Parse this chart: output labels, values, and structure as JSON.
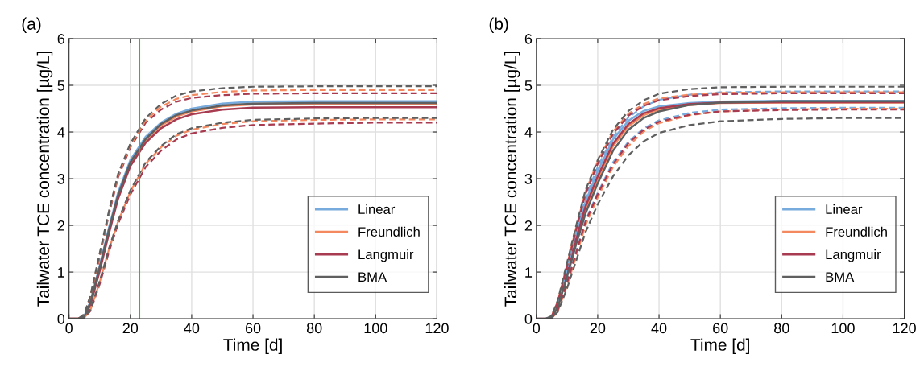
{
  "chart_data": [
    {
      "type": "line",
      "annotations": [
        "(a)"
      ],
      "xlabel": "Time [d]",
      "ylabel": "Tailwater TCE concentration [µg/L]",
      "x": [
        0,
        3,
        5,
        7,
        10,
        13,
        16,
        20,
        25,
        30,
        35,
        40,
        50,
        60,
        80,
        100,
        120
      ],
      "xlim": [
        0,
        120
      ],
      "xticks": [
        0,
        20,
        40,
        60,
        80,
        100,
        120
      ],
      "ylim": [
        0,
        6
      ],
      "yticks": [
        0,
        1,
        2,
        3,
        4,
        5,
        6
      ],
      "grid": true,
      "legend": "bottom right",
      "marker": "none",
      "ref_lines": [
        {
          "axis": "x",
          "value": 23,
          "color": "#00dd00",
          "line_style": "solid"
        }
      ],
      "series": [
        {
          "name": "Linear",
          "color": "#77aadd",
          "line_style": "solid",
          "values": [
            null,
            null,
            0.06,
            0.37,
            1.13,
            1.94,
            2.7,
            3.4,
            3.9,
            4.2,
            4.39,
            4.5,
            4.61,
            4.65,
            4.66,
            4.66,
            4.66
          ]
        },
        {
          "name": "Freundlich",
          "color": "#f4895f",
          "line_style": "solid",
          "values": [
            0,
            0,
            0.04,
            0.33,
            1.07,
            1.87,
            2.62,
            3.32,
            3.82,
            4.14,
            4.33,
            4.44,
            4.55,
            4.59,
            4.6,
            4.6,
            4.6
          ]
        },
        {
          "name": "Langmuir",
          "color": "#a83b50",
          "line_style": "solid",
          "values": [
            0,
            0,
            0.03,
            0.3,
            1.02,
            1.82,
            2.57,
            3.27,
            3.77,
            4.08,
            4.27,
            4.38,
            4.48,
            4.52,
            4.53,
            4.53,
            4.53
          ]
        },
        {
          "color": "#a83b50",
          "line_style": "dashed",
          "values": [
            0,
            0,
            0.08,
            0.45,
            1.33,
            2.23,
            3.03,
            3.67,
            4.2,
            4.48,
            4.65,
            4.73,
            4.79,
            4.82,
            4.83,
            4.83,
            4.83
          ]
        },
        {
          "color": "#a83b50",
          "line_style": "dashed",
          "values": [
            0,
            0,
            0.01,
            0.17,
            0.74,
            1.43,
            2.03,
            2.66,
            3.25,
            3.6,
            3.84,
            3.97,
            4.09,
            4.15,
            4.18,
            4.2,
            4.2
          ]
        },
        {
          "color": "#f4895f",
          "line_style": "dashed",
          "values": [
            0,
            0,
            0.09,
            0.48,
            1.37,
            2.27,
            3.07,
            3.71,
            4.25,
            4.54,
            4.71,
            4.79,
            4.86,
            4.89,
            4.9,
            4.9,
            4.9
          ]
        },
        {
          "color": "#f4895f",
          "line_style": "dashed",
          "values": [
            null,
            null,
            0.02,
            0.19,
            0.78,
            1.48,
            2.08,
            2.72,
            3.32,
            3.67,
            3.92,
            4.05,
            4.17,
            4.23,
            4.26,
            4.27,
            4.27
          ]
        },
        {
          "color": "#5f5f5f",
          "line_style": "dashed",
          "values": [
            0,
            0,
            0.1,
            0.5,
            1.4,
            2.3,
            3.1,
            3.75,
            4.3,
            4.6,
            4.78,
            4.87,
            4.94,
            4.97,
            4.98,
            4.98,
            4.98
          ]
        },
        {
          "color": "#5f5f5f",
          "line_style": "dashed",
          "values": [
            0,
            0,
            0.02,
            0.2,
            0.8,
            1.5,
            2.1,
            2.75,
            3.35,
            3.7,
            3.95,
            4.08,
            4.2,
            4.26,
            4.29,
            4.3,
            4.3
          ]
        },
        {
          "name": "BMA",
          "color": "#5f5f5f",
          "line_style": "solid",
          "values": [
            0,
            0,
            0.05,
            0.35,
            1.1,
            1.9,
            2.65,
            3.35,
            3.85,
            4.17,
            4.36,
            4.46,
            4.57,
            4.61,
            4.62,
            4.62,
            4.62
          ]
        }
      ]
    },
    {
      "type": "line",
      "annotations": [
        "(b)"
      ],
      "xlabel": "Time [d]",
      "ylabel": "Tailwater TCE concentration [µg/L]",
      "x": [
        0,
        3,
        5,
        7,
        10,
        13,
        16,
        20,
        25,
        30,
        35,
        40,
        50,
        60,
        80,
        100,
        120
      ],
      "xlim": [
        0,
        120
      ],
      "xticks": [
        0,
        20,
        40,
        60,
        80,
        100,
        120
      ],
      "ylim": [
        0,
        6
      ],
      "yticks": [
        0,
        1,
        2,
        3,
        4,
        5,
        6
      ],
      "grid": true,
      "legend": "bottom right",
      "marker": "none",
      "series": [
        {
          "name": "Linear",
          "color": "#77aadd",
          "line_style": "solid",
          "values": [
            null,
            null,
            0.04,
            0.31,
            1.04,
            1.8,
            2.5,
            3.16,
            3.84,
            4.24,
            4.45,
            4.55,
            4.62,
            4.65,
            4.67,
            4.67,
            4.67
          ]
        },
        {
          "name": "Freundlich",
          "color": "#f4895f",
          "line_style": "solid",
          "values": [
            null,
            null,
            0.02,
            0.26,
            0.95,
            1.68,
            2.35,
            3.0,
            3.7,
            4.12,
            4.36,
            4.48,
            4.58,
            4.62,
            4.63,
            4.63,
            4.63
          ]
        },
        {
          "name": "Langmuir",
          "color": "#a83b50",
          "line_style": "solid",
          "values": [
            0,
            0,
            0.02,
            0.27,
            0.98,
            1.72,
            2.4,
            3.05,
            3.75,
            4.17,
            4.4,
            4.51,
            4.6,
            4.63,
            4.64,
            4.64,
            4.64
          ]
        },
        {
          "color": "#77aadd",
          "line_style": "dashed",
          "values": [
            null,
            0,
            0.04,
            0.33,
            1.06,
            1.85,
            2.6,
            3.25,
            3.9,
            4.31,
            4.55,
            4.69,
            4.8,
            4.85,
            4.87,
            4.87,
            4.87
          ]
        },
        {
          "color": "#77aadd",
          "line_style": "dashed",
          "values": [
            null,
            null,
            0.01,
            0.2,
            0.79,
            1.45,
            2.1,
            2.7,
            3.35,
            3.79,
            4.08,
            4.25,
            4.41,
            4.48,
            4.51,
            4.52,
            4.52
          ]
        },
        {
          "color": "#f4895f",
          "line_style": "dashed",
          "values": [
            null,
            null,
            0.06,
            0.38,
            1.15,
            1.96,
            2.72,
            3.37,
            4.01,
            4.39,
            4.6,
            4.72,
            4.8,
            4.84,
            4.85,
            4.85,
            4.85
          ]
        },
        {
          "color": "#f4895f",
          "line_style": "dashed",
          "values": [
            null,
            null,
            0.01,
            0.16,
            0.71,
            1.35,
            2.0,
            2.6,
            3.25,
            3.7,
            4.01,
            4.19,
            4.36,
            4.44,
            4.48,
            4.5,
            4.5
          ]
        },
        {
          "color": "#a83b50",
          "line_style": "dashed",
          "values": [
            null,
            null,
            0.05,
            0.36,
            1.12,
            1.92,
            2.67,
            3.32,
            3.96,
            4.35,
            4.56,
            4.68,
            4.77,
            4.81,
            4.83,
            4.83,
            4.83
          ]
        },
        {
          "color": "#a83b50",
          "line_style": "dashed",
          "values": [
            null,
            null,
            0.01,
            0.19,
            0.77,
            1.42,
            2.07,
            2.67,
            3.31,
            3.76,
            4.05,
            4.22,
            4.37,
            4.44,
            4.47,
            4.48,
            4.48
          ]
        },
        {
          "color": "#5f5f5f",
          "line_style": "dashed",
          "values": [
            0,
            0,
            0.06,
            0.4,
            1.2,
            2.0,
            2.75,
            3.4,
            4.05,
            4.45,
            4.68,
            4.82,
            4.92,
            4.96,
            4.97,
            4.97,
            4.97
          ]
        },
        {
          "color": "#5f5f5f",
          "line_style": "dashed",
          "values": [
            0,
            0,
            0.01,
            0.15,
            0.65,
            1.25,
            1.85,
            2.45,
            3.05,
            3.5,
            3.8,
            3.98,
            4.15,
            4.23,
            4.28,
            4.3,
            4.3
          ]
        },
        {
          "name": "BMA",
          "color": "#5f5f5f",
          "line_style": "solid",
          "values": [
            0,
            0,
            0.03,
            0.25,
            0.9,
            1.6,
            2.25,
            2.9,
            3.6,
            4.05,
            4.3,
            4.44,
            4.58,
            4.63,
            4.66,
            4.66,
            4.66
          ]
        }
      ]
    }
  ]
}
